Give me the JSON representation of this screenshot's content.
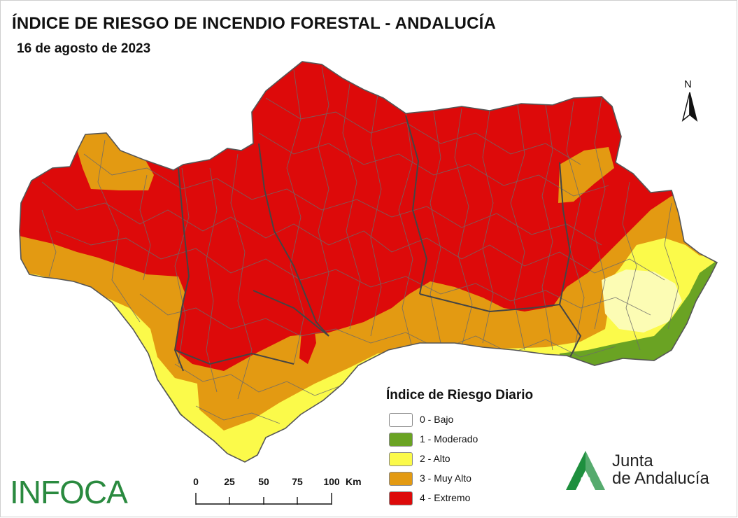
{
  "header": {
    "title": "ÍNDICE DE RIESGO DE INCENDIO FORESTAL - ANDALUCÍA",
    "date": "16 de agosto de 2023"
  },
  "north_arrow": {
    "label": "N"
  },
  "legend": {
    "title": "Índice de Riesgo Diario",
    "items": [
      {
        "label": "0 - Bajo",
        "color": "#ffffff"
      },
      {
        "label": "1 - Moderado",
        "color": "#6aa323"
      },
      {
        "label": "2 - Alto",
        "color": "#fbfa4a"
      },
      {
        "label": "3 - Muy Alto",
        "color": "#e39a12"
      },
      {
        "label": "4 - Extremo",
        "color": "#dd0a0a"
      }
    ]
  },
  "scale_bar": {
    "ticks": [
      "0",
      "25",
      "50",
      "75",
      "100"
    ],
    "unit": "Km"
  },
  "logos": {
    "infoca": "INFOCA",
    "junta_line1": "Junta",
    "junta_line2": "de Andalucía"
  },
  "colors": {
    "border": "#555555",
    "infoca": "#2a8a3f",
    "junta_green": "#1e8f3e"
  }
}
